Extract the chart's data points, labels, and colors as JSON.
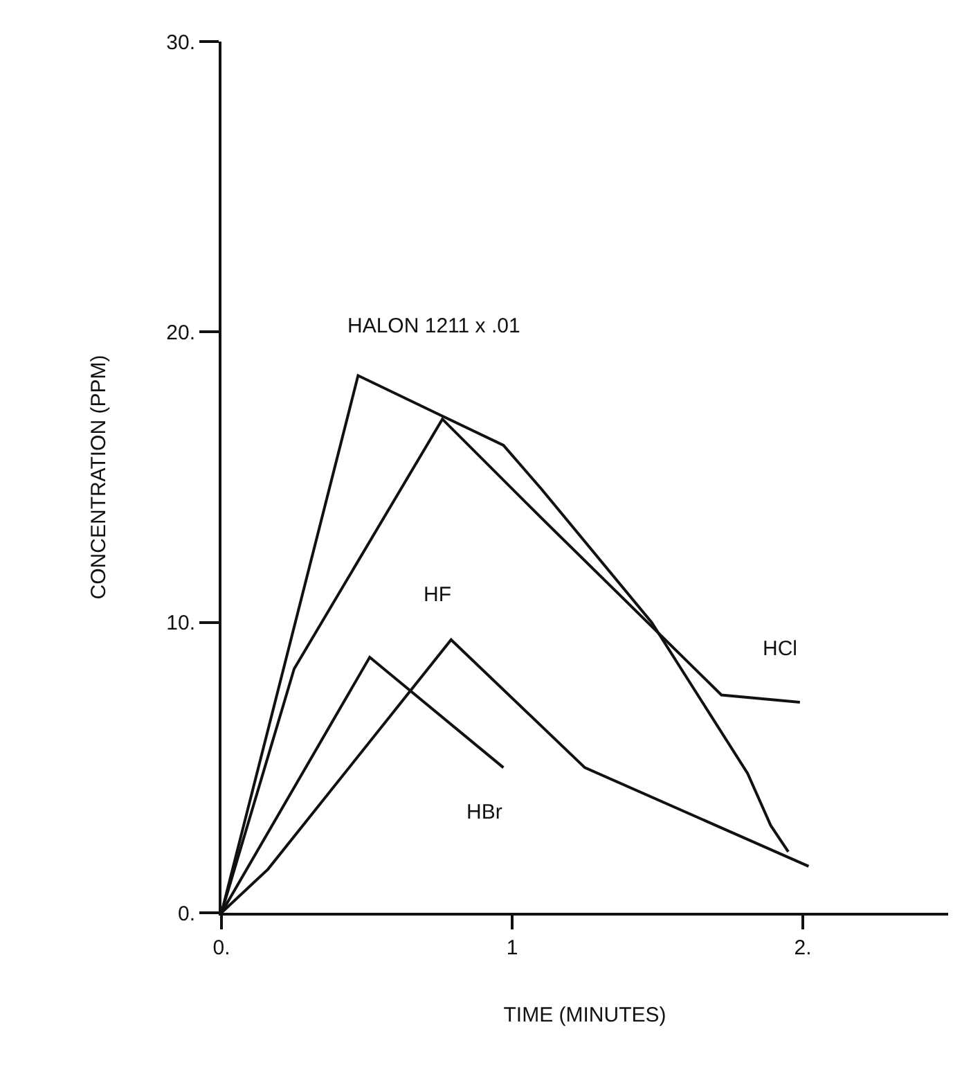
{
  "chart_data": {
    "type": "line",
    "xlabel": "TIME (MINUTES)",
    "ylabel": "CONCENTRATION (PPM)",
    "xlim": [
      0,
      2.5
    ],
    "xticks": [
      {
        "value": 0,
        "label": "0."
      },
      {
        "value": 1,
        "label": "1"
      },
      {
        "value": 2,
        "label": "2."
      }
    ],
    "ylim": [
      0,
      30
    ],
    "yticks": [
      {
        "value": 0,
        "label": "0."
      },
      {
        "value": 10,
        "label": "10."
      },
      {
        "value": 20,
        "label": "20."
      },
      {
        "value": 30,
        "label": "30."
      }
    ],
    "grid": false,
    "legend": false,
    "marker": "none",
    "line_style": "solid",
    "series": [
      {
        "name": "HALON 1211 x .01",
        "color": "#111111",
        "x": [
          0,
          0.47,
          0.74,
          0.97,
          1.1,
          1.48,
          1.81,
          1.89,
          1.95
        ],
        "values": [
          0,
          18.5,
          17.2,
          16.1,
          14.6,
          10.0,
          4.8,
          3.0,
          2.1
        ]
      },
      {
        "name": "HCl",
        "color": "#111111",
        "x": [
          0,
          0.25,
          0.76,
          1.1,
          1.72,
          1.99
        ],
        "values": [
          0,
          8.4,
          17.0,
          13.6,
          7.5,
          7.25
        ]
      },
      {
        "name": "HBr",
        "color": "#111111",
        "x": [
          0,
          0.51,
          0.97
        ],
        "values": [
          0,
          8.8,
          5.0
        ]
      },
      {
        "name": "HF",
        "color": "#111111",
        "x": [
          0,
          0.16,
          0.79,
          1.25,
          2.02
        ],
        "values": [
          0,
          1.5,
          9.4,
          5.0,
          1.6
        ]
      }
    ]
  }
}
